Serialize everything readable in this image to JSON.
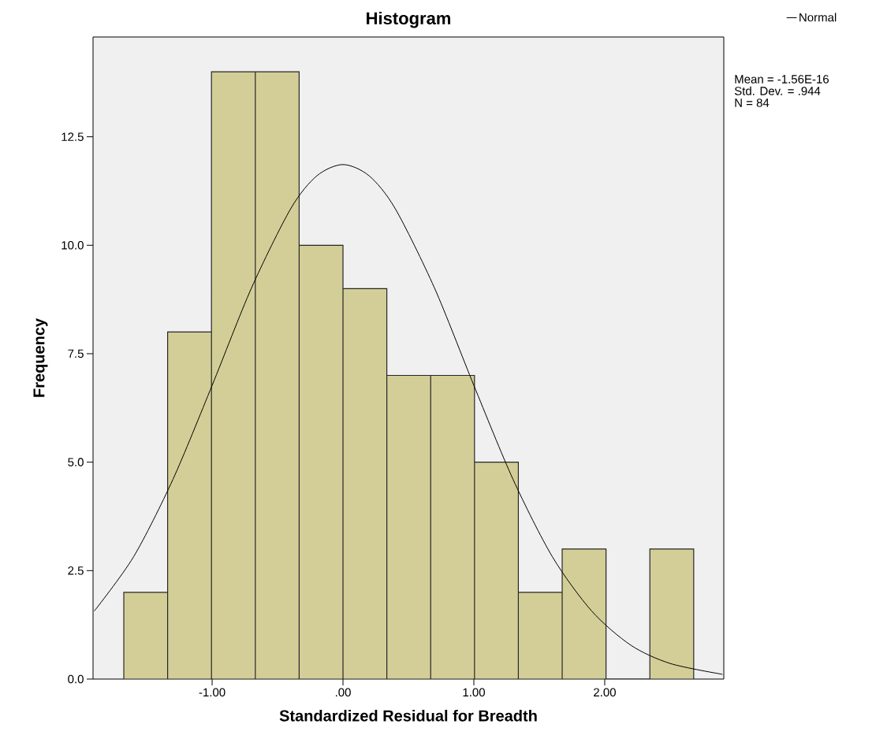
{
  "chart_data": {
    "type": "histogram",
    "title": "Histogram",
    "xlabel": "Standardized Residual for Breadth",
    "ylabel": "Frequency",
    "series": [
      {
        "color": "#d3ce97",
        "bins": [
          -1.675,
          -1.34,
          -1.005,
          -0.67,
          -0.335,
          0,
          0.335,
          0.67,
          1.005,
          1.34,
          1.675,
          2.01,
          2.345,
          2.68
        ],
        "values": [
          2,
          8,
          14,
          14,
          10,
          9,
          7,
          7,
          5,
          2,
          3,
          0,
          3
        ]
      },
      {
        "type": "line",
        "name": "Normal",
        "color": "#000000",
        "x": [
          -1.9,
          -1.6,
          -1.3,
          -1.0,
          -0.7,
          -0.4,
          -0.2,
          0,
          0.2,
          0.4,
          0.7,
          1.0,
          1.3,
          1.6,
          1.9,
          2.2,
          2.5,
          2.9
        ],
        "values": [
          1.57,
          2.82,
          4.6,
          6.77,
          9.01,
          10.84,
          11.6,
          11.86,
          11.6,
          10.84,
          9.01,
          6.77,
          4.6,
          2.82,
          1.57,
          0.78,
          0.36,
          0.11
        ]
      }
    ],
    "xlim": [
      -1.91,
      2.91
    ],
    "ylim": [
      0,
      14.8
    ],
    "xticks": [
      {
        "value": -1,
        "label": "-1.00"
      },
      {
        "value": 0,
        "label": ".00"
      },
      {
        "value": 1,
        "label": "1.00"
      },
      {
        "value": 2,
        "label": "2.00"
      }
    ],
    "yticks": [
      {
        "value": 0,
        "label": "0.0"
      },
      2.5,
      {
        "value": 5,
        "label": "5.0"
      },
      7.5,
      {
        "value": 10,
        "label": "10.0"
      },
      12.5
    ],
    "legend": "top right",
    "grid": false,
    "annotations": [
      "Mean = -1.56E-16",
      "Std. Dev. = .944",
      "N = 84"
    ]
  }
}
